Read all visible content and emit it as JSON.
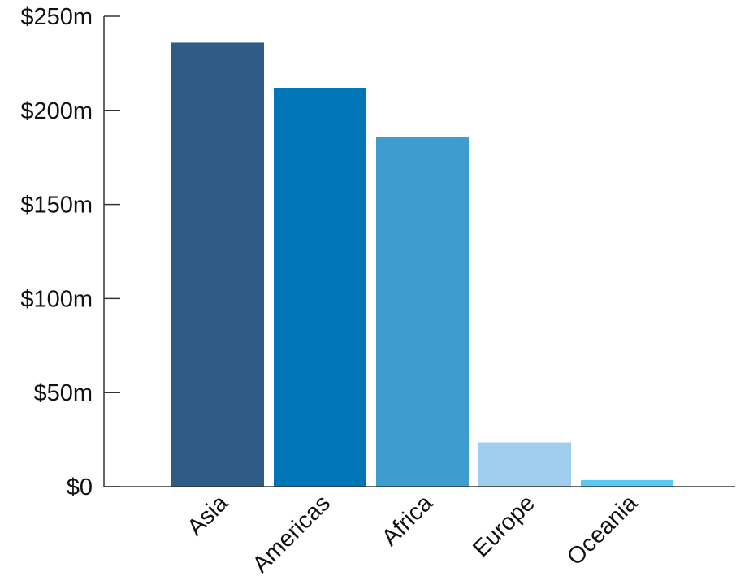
{
  "chart_data": {
    "type": "bar",
    "title": "",
    "xlabel": "",
    "ylabel": "",
    "categories": [
      "Asia",
      "Americas",
      "Africa",
      "Europe",
      "Oceania"
    ],
    "values": [
      236,
      212,
      186,
      23.5,
      3.5
    ],
    "value_unit": "millions of dollars",
    "ylim": [
      0,
      250
    ],
    "yticks": [
      0,
      50,
      100,
      150,
      200,
      250
    ],
    "ytick_labels": [
      "$0",
      "$50m",
      "$100m",
      "$150m",
      "$200m",
      "$250m"
    ],
    "colors": [
      "#2f5b87",
      "#0076b6",
      "#3e9ccf",
      "#9ecdee",
      "#5ac8f5"
    ],
    "grid": false,
    "legend": "none"
  }
}
